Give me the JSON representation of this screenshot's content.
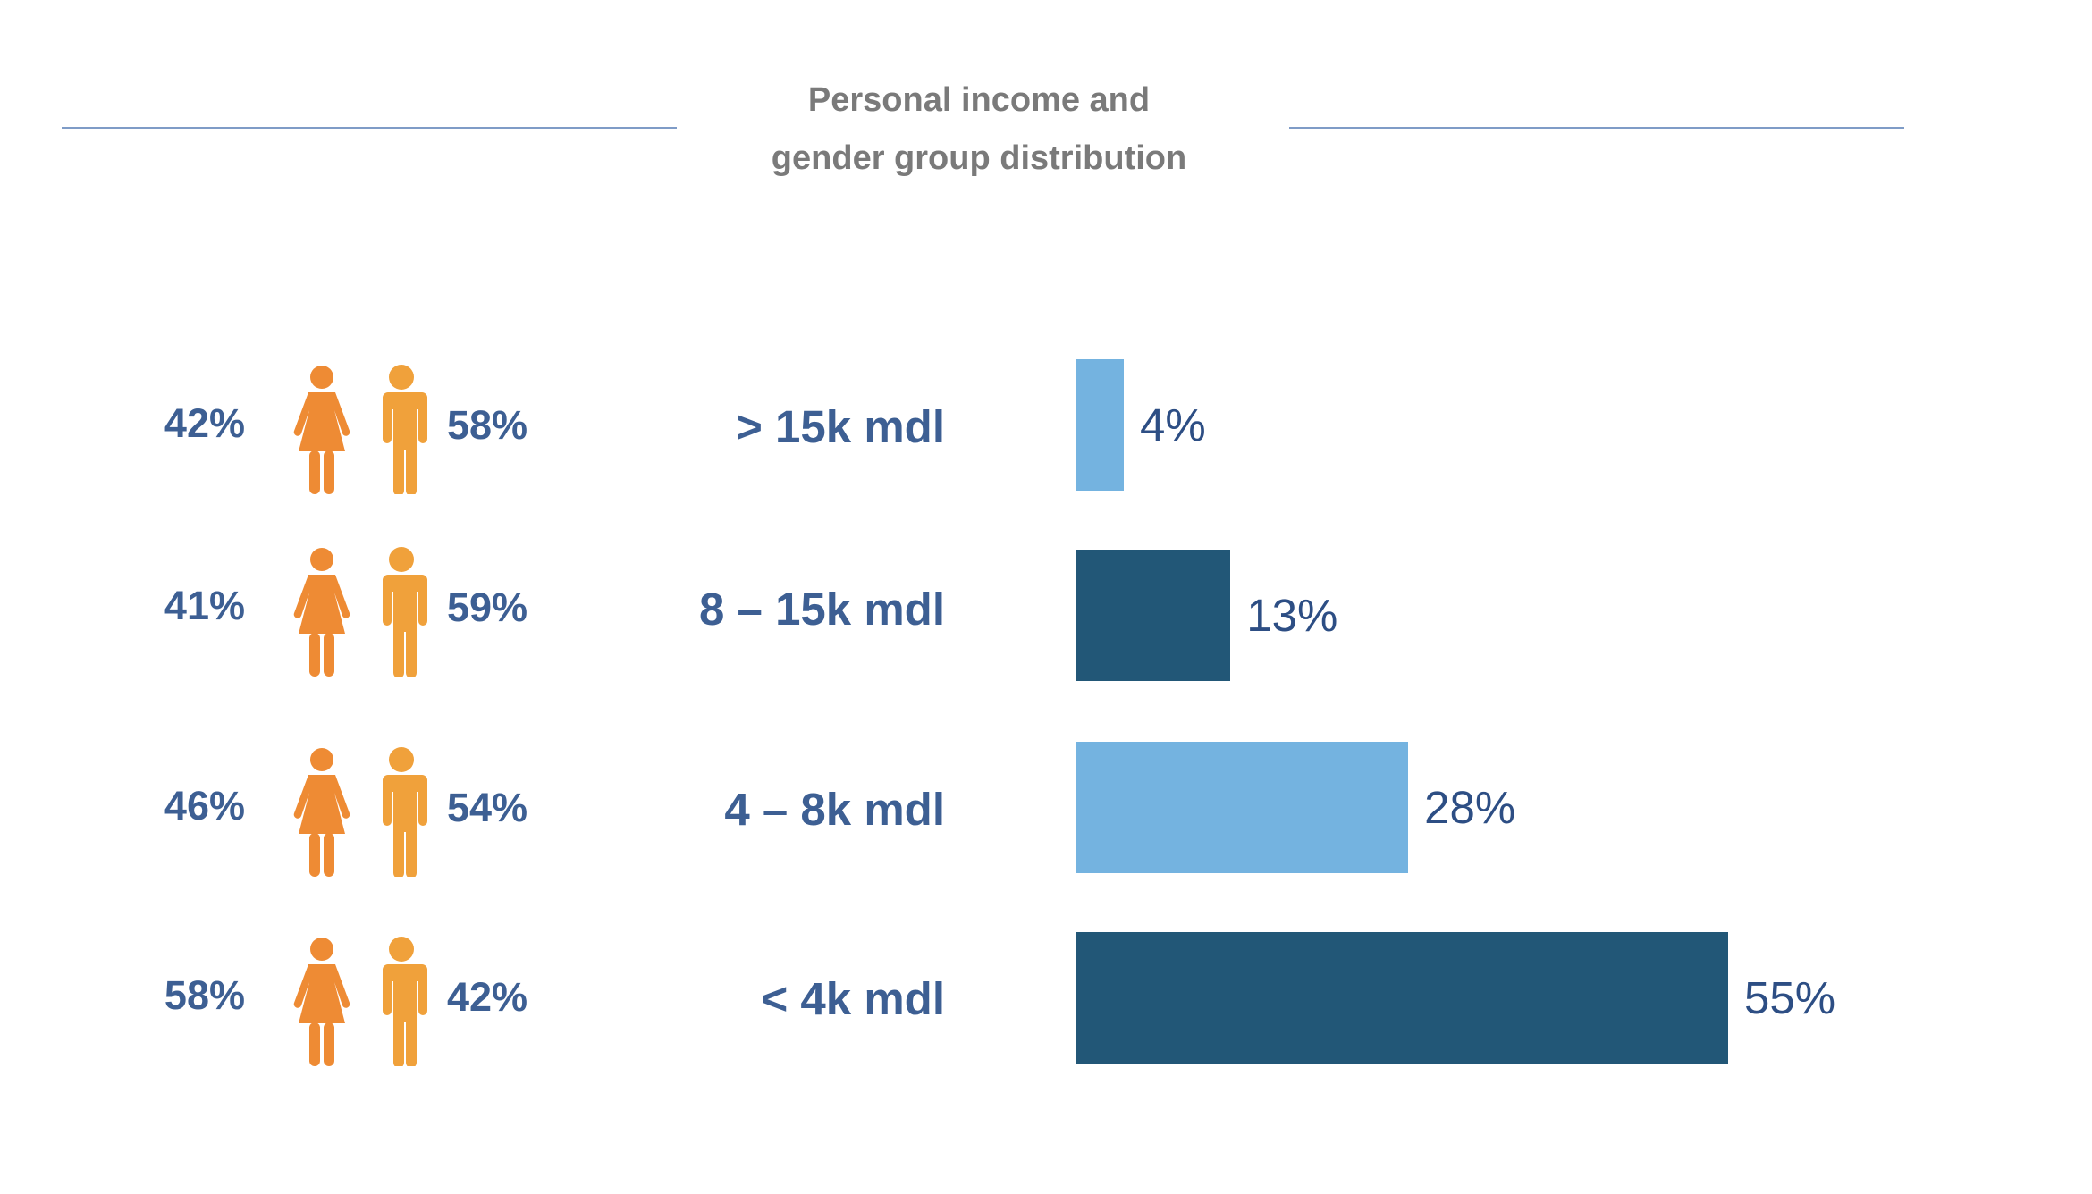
{
  "chart_data": {
    "type": "bar",
    "orientation": "horizontal",
    "title": "Personal income and gender group distribution",
    "title_lines": [
      "Personal income and",
      "gender group distribution"
    ],
    "categories": [
      "> 15k mdl",
      "8 – 15k mdl",
      "4 – 8k mdl",
      "< 4k mdl"
    ],
    "values": [
      4,
      13,
      28,
      55
    ],
    "value_labels": [
      "4%",
      "13%",
      "28%",
      "55%"
    ],
    "bar_colors": [
      "#74b3e0",
      "#225777",
      "#74b3e0",
      "#225777"
    ],
    "gender": {
      "female": [
        42,
        41,
        46,
        58
      ],
      "male": [
        58,
        59,
        54,
        42
      ],
      "female_labels": [
        "42%",
        "41%",
        "46%",
        "58%"
      ],
      "male_labels": [
        "58%",
        "59%",
        "54%",
        "42%"
      ],
      "female_color": "#ee8b34",
      "male_color": "#f0a13b"
    }
  }
}
